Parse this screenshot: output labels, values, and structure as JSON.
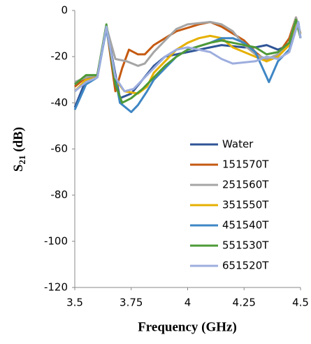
{
  "chart_data": {
    "type": "line",
    "x_label": "Frequency (GHz)",
    "y_label": {
      "main": "S",
      "sub": "21",
      "unit": "(dB)"
    },
    "xlim": [
      3.5,
      4.5
    ],
    "xticks": [
      3.5,
      3.75,
      4,
      4.25,
      4.5
    ],
    "ylim": [
      -120,
      0
    ],
    "yticks": [
      0,
      -20,
      -40,
      -60,
      -80,
      -100,
      -120
    ],
    "grid": false,
    "legend": "lower right",
    "series": [
      {
        "name": "Water",
        "color": "#2f5597",
        "x": [
          3.5,
          3.55,
          3.6,
          3.64,
          3.7,
          3.75,
          3.8,
          3.85,
          3.9,
          4.0,
          4.1,
          4.15,
          4.25,
          4.3,
          4.35,
          4.4,
          4.45,
          4.49,
          4.5
        ],
        "values": [
          -42,
          -30,
          -28,
          -7,
          -38,
          -36,
          -30,
          -24,
          -20,
          -18,
          -16,
          -15,
          -16,
          -16,
          -15,
          -17,
          -15,
          -5,
          -12
        ]
      },
      {
        "name": "151570T",
        "color": "#c55a11",
        "x": [
          3.5,
          3.55,
          3.6,
          3.64,
          3.68,
          3.71,
          3.74,
          3.78,
          3.81,
          3.85,
          3.9,
          3.95,
          4.05,
          4.1,
          4.15,
          4.25,
          4.3,
          4.35,
          4.4,
          4.45,
          4.48,
          4.5
        ],
        "values": [
          -33,
          -29,
          -28,
          -7,
          -35,
          -25,
          -17,
          -19,
          -19,
          -15,
          -12,
          -9,
          -6,
          -5,
          -7,
          -13,
          -18,
          -22,
          -19,
          -12,
          -3,
          -10
        ]
      },
      {
        "name": "251560T",
        "color": "#a5a5a5",
        "x": [
          3.5,
          3.55,
          3.6,
          3.64,
          3.68,
          3.73,
          3.78,
          3.81,
          3.85,
          3.9,
          3.95,
          4.0,
          4.1,
          4.15,
          4.2,
          4.25,
          4.3,
          4.35,
          4.4,
          4.45,
          4.48,
          4.5
        ],
        "values": [
          -31,
          -29,
          -28,
          -7,
          -21,
          -22,
          -24,
          -23,
          -18,
          -13,
          -8,
          -6,
          -5,
          -6,
          -9,
          -15,
          -19,
          -21,
          -19,
          -14,
          -3,
          -10
        ]
      },
      {
        "name": "351550T",
        "color": "#e6b000",
        "x": [
          3.5,
          3.55,
          3.6,
          3.64,
          3.68,
          3.72,
          3.78,
          3.82,
          3.85,
          3.9,
          3.95,
          4.0,
          4.05,
          4.1,
          4.15,
          4.2,
          4.3,
          4.35,
          4.4,
          4.45,
          4.48,
          4.5
        ],
        "values": [
          -35,
          -30,
          -29,
          -7,
          -30,
          -35,
          -36,
          -33,
          -27,
          -22,
          -17,
          -14,
          -12,
          -11,
          -12,
          -16,
          -20,
          -22,
          -20,
          -15,
          -5,
          -10
        ]
      },
      {
        "name": "451540T",
        "color": "#3e86c4",
        "x": [
          3.5,
          3.55,
          3.6,
          3.64,
          3.7,
          3.75,
          3.78,
          3.82,
          3.85,
          3.9,
          3.95,
          4.0,
          4.1,
          4.15,
          4.2,
          4.25,
          4.3,
          4.36,
          4.4,
          4.45,
          4.49,
          4.5
        ],
        "values": [
          -43,
          -32,
          -29,
          -8,
          -40,
          -44,
          -41,
          -35,
          -30,
          -25,
          -20,
          -17,
          -14,
          -12,
          -12,
          -14,
          -18,
          -31,
          -22,
          -17,
          -5,
          -12
        ]
      },
      {
        "name": "551530T",
        "color": "#4e9a37",
        "x": [
          3.5,
          3.55,
          3.6,
          3.64,
          3.68,
          3.71,
          3.75,
          3.8,
          3.85,
          3.9,
          3.95,
          4.0,
          4.1,
          4.15,
          4.2,
          4.3,
          4.35,
          4.4,
          4.45,
          4.48,
          4.5
        ],
        "values": [
          -32,
          -28,
          -28,
          -6,
          -32,
          -40,
          -38,
          -34,
          -29,
          -24,
          -20,
          -17,
          -14,
          -13,
          -14,
          -16,
          -19,
          -18,
          -14,
          -4,
          -12
        ]
      },
      {
        "name": "651520T",
        "color": "#9dadde",
        "x": [
          3.5,
          3.55,
          3.6,
          3.64,
          3.68,
          3.72,
          3.76,
          3.8,
          3.85,
          3.9,
          3.95,
          4.0,
          4.1,
          4.15,
          4.2,
          4.3,
          4.35,
          4.4,
          4.45,
          4.49,
          4.5
        ],
        "values": [
          -35,
          -31,
          -29,
          -7,
          -29,
          -35,
          -34,
          -30,
          -25,
          -20,
          -17,
          -16,
          -18,
          -21,
          -23,
          -22,
          -20,
          -21,
          -18,
          -5,
          -12
        ]
      }
    ]
  }
}
